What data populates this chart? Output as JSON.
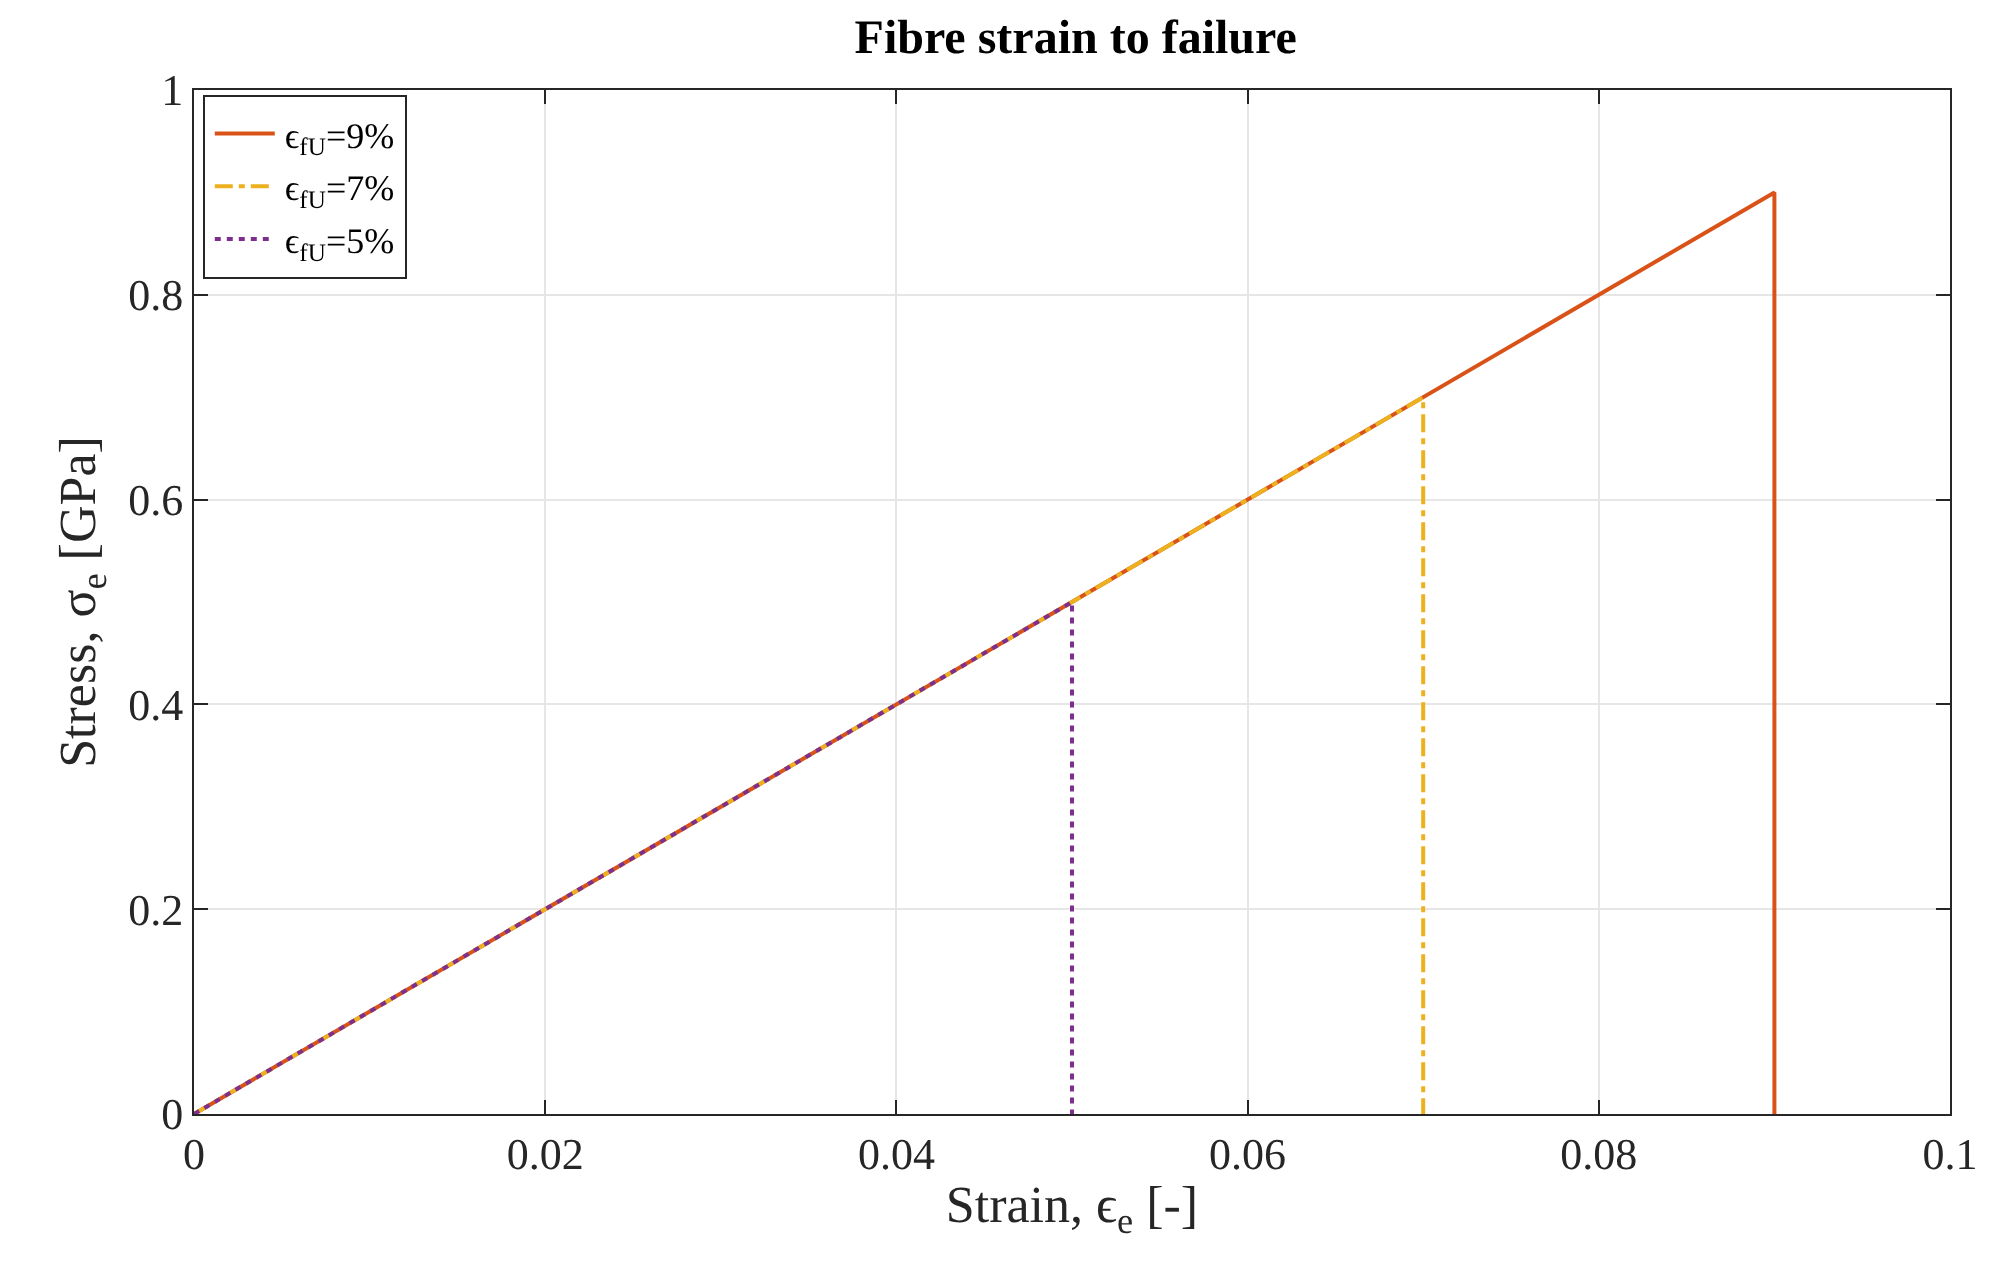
{
  "chart_data": {
    "type": "line",
    "title": "Fibre strain to failure",
    "xlabel": "Strain, ϵ$_{e}$ [-]",
    "ylabel": "Stress, σ$_{e}$ [GPa]",
    "series": [
      {
        "name": "ϵ$_{fU}$=9%",
        "color": "#d95319",
        "line_style": "solid",
        "x": [
          0,
          0.09,
          0.09
        ],
        "values": [
          0,
          0.9,
          0
        ]
      },
      {
        "name": "ϵ$_{fU}$=7%",
        "color": "#edb120",
        "line_style": "dashed",
        "x": [
          0,
          0.07,
          0.07
        ],
        "values": [
          0,
          0.7,
          0
        ]
      },
      {
        "name": "ϵ$_{fU}$=5%",
        "color": "#7e2f8e",
        "line_style": "dotted",
        "x": [
          0,
          0.05,
          0.05
        ],
        "values": [
          0,
          0.5,
          0
        ]
      }
    ],
    "xlim": [
      0,
      0.1
    ],
    "xticks": [
      0,
      0.02,
      0.04,
      0.06,
      0.08,
      0.1
    ],
    "ylim": [
      0,
      1
    ],
    "yticks": [
      0,
      0.2,
      0.4,
      0.6,
      0.8,
      1
    ],
    "grid": true,
    "legend": "top left",
    "marker": "none"
  }
}
